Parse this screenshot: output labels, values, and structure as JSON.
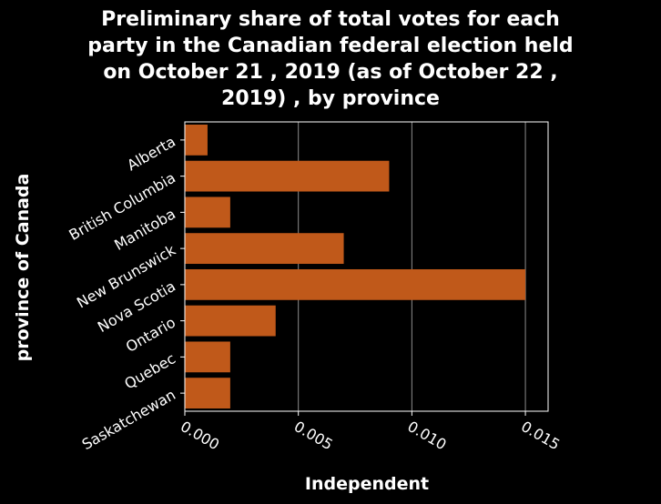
{
  "chart_data": {
    "type": "bar",
    "orientation": "horizontal",
    "title": "Preliminary share of total votes for each party in the Canadian federal election held on October 21 , 2019 (as of October 22 , 2019) , by province",
    "title_lines": [
      "Preliminary share of total votes for each",
      "party in the Canadian federal election held",
      "on October 21 , 2019 (as of October 22 ,",
      "2019) , by province"
    ],
    "xlabel": "Independent",
    "ylabel": "province of Canada",
    "categories": [
      "Alberta",
      "British Columbia",
      "Manitoba",
      "New Brunswick",
      "Nova Scotia",
      "Ontario",
      "Quebec",
      "Saskatchewan"
    ],
    "values": [
      0.001,
      0.009,
      0.002,
      0.007,
      0.015,
      0.004,
      0.002,
      0.002
    ],
    "xlim": [
      0,
      0.016
    ],
    "xticks": [
      0,
      0.005,
      0.01,
      0.015
    ],
    "xtick_labels": [
      "0.000",
      "0.005",
      "0.010",
      "0.015"
    ],
    "grid": true,
    "colors": {
      "bar": "#c0591a",
      "background": "#000000",
      "grid": "#ffffff",
      "text": "#ffffff"
    }
  }
}
